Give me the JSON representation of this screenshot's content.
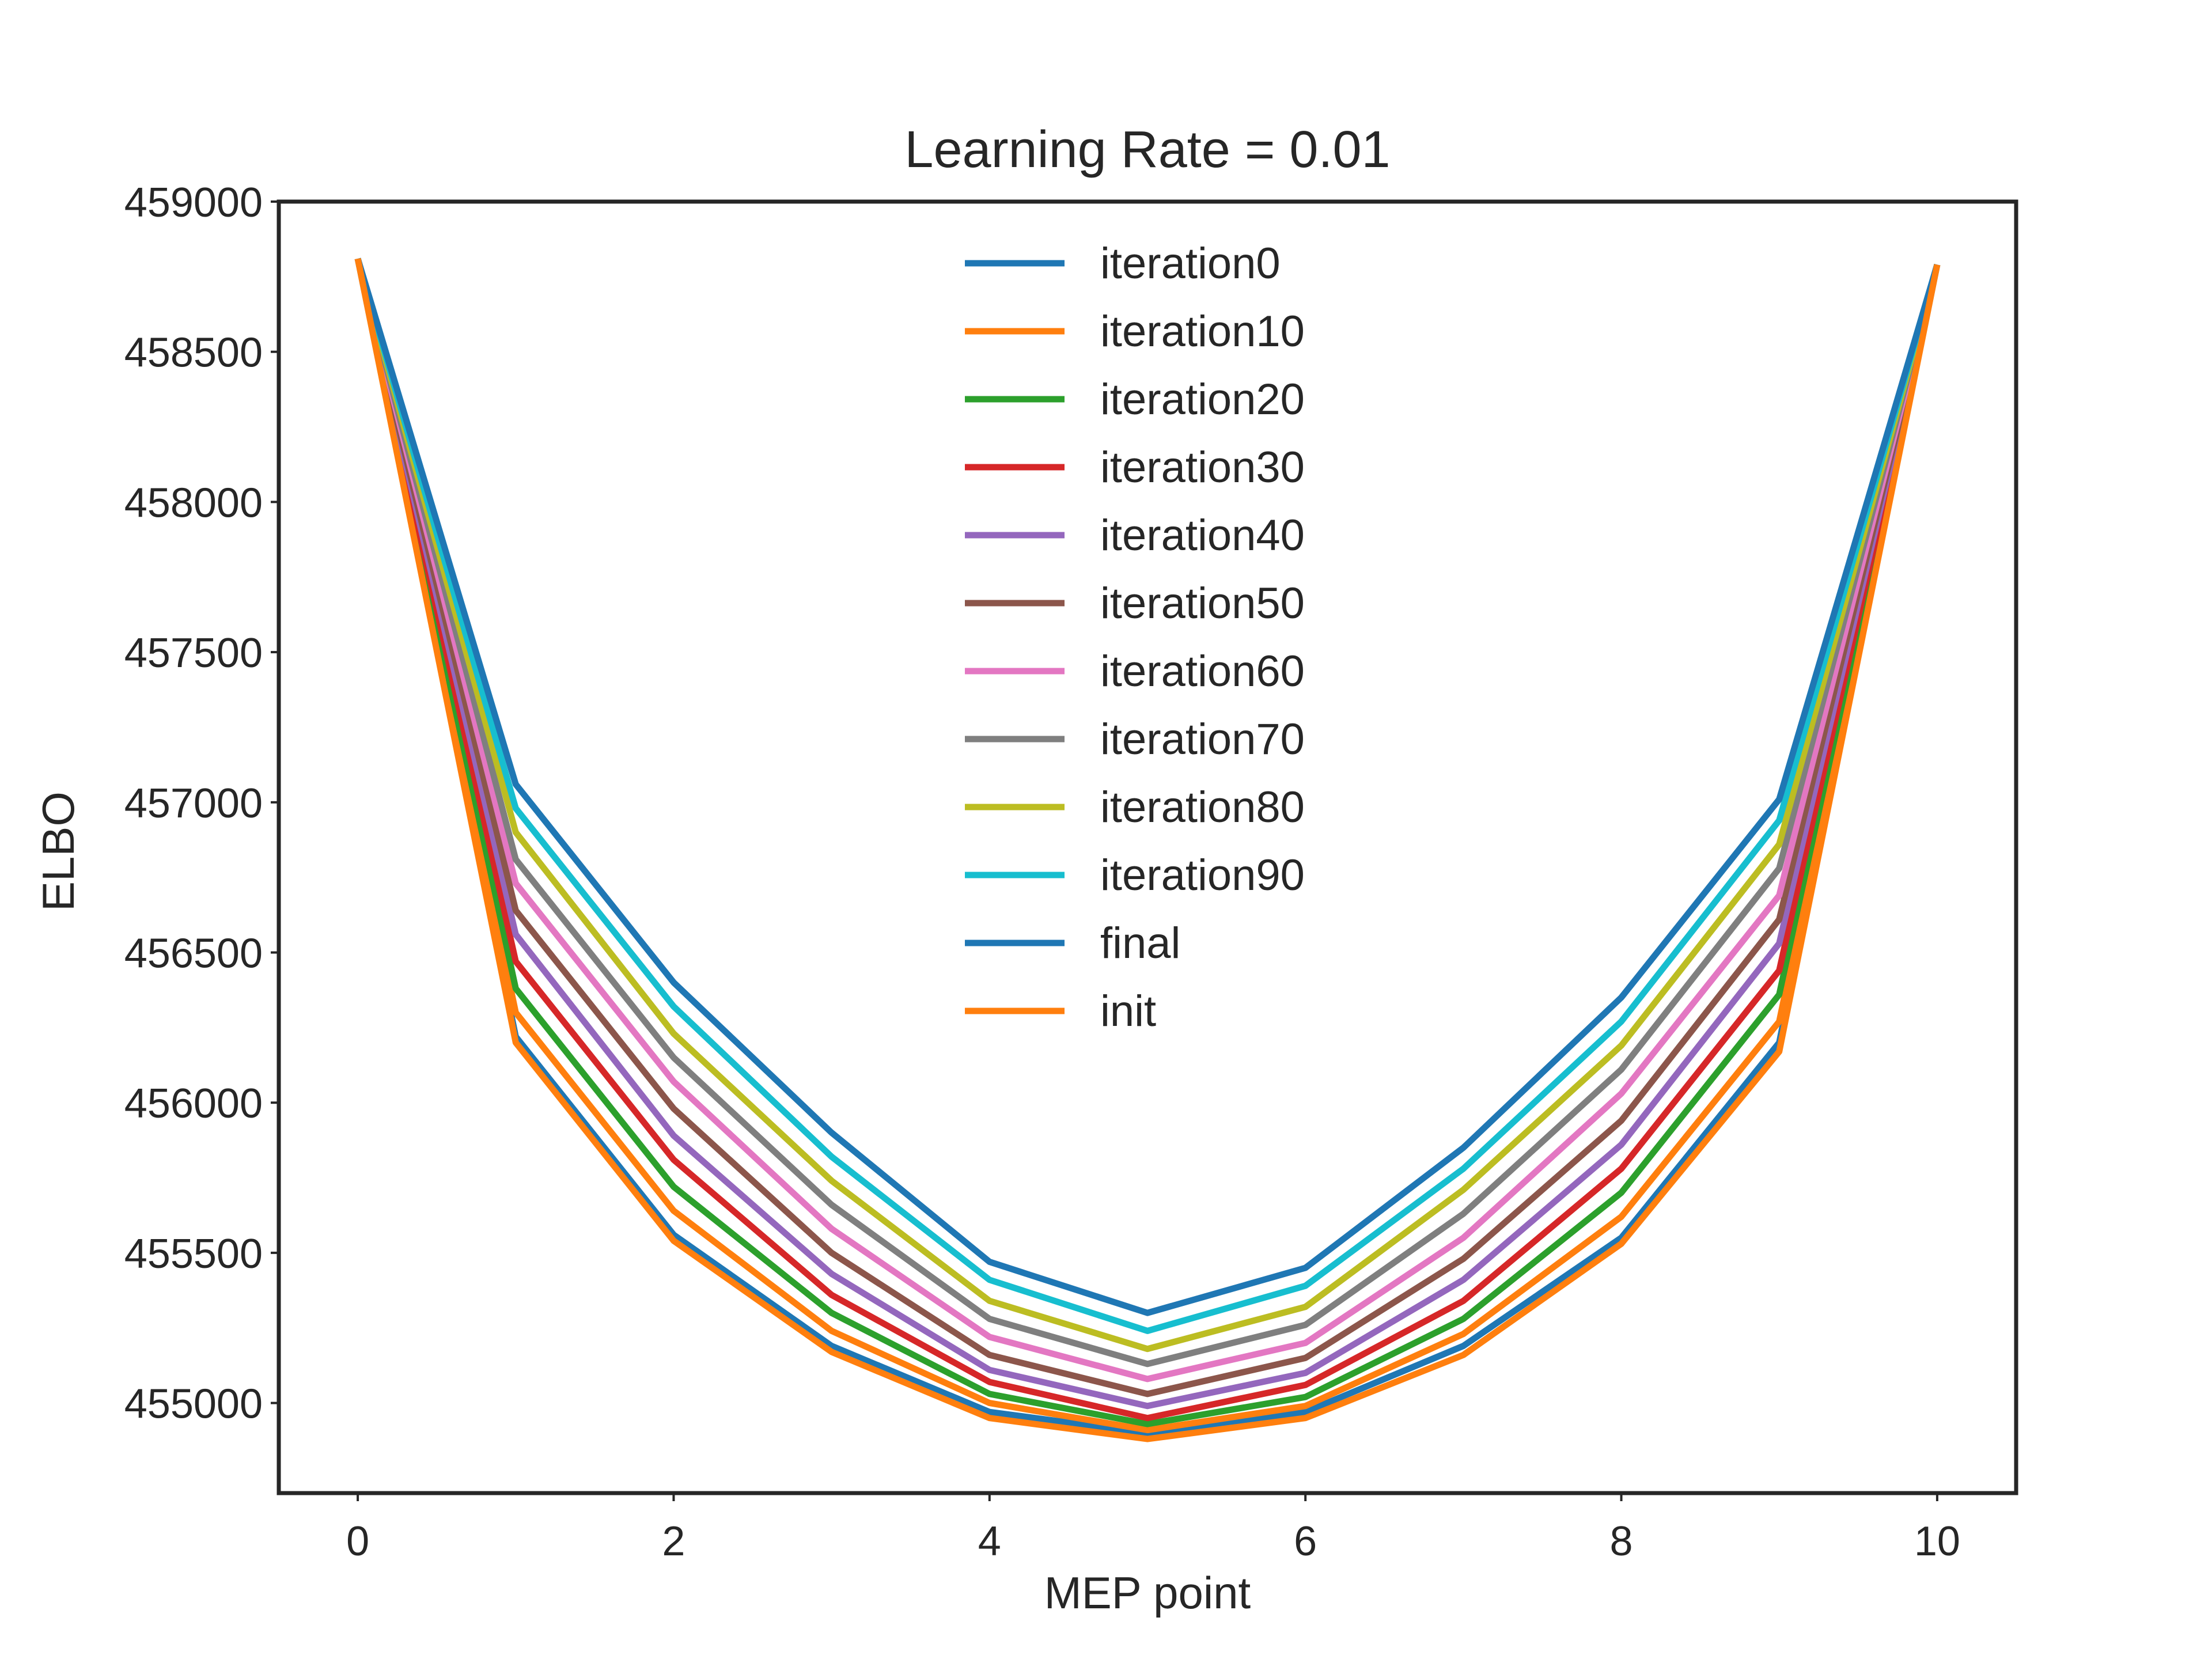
{
  "chart_data": {
    "type": "line",
    "title": "Learning Rate = 0.01",
    "xlabel": "MEP point",
    "ylabel": "ELBO",
    "xlim": [
      -0.5,
      10.5
    ],
    "ylim": [
      454700,
      459000
    ],
    "xticks": [
      0,
      2,
      4,
      6,
      8,
      10
    ],
    "yticks": [
      455000,
      455500,
      456000,
      456500,
      457000,
      457500,
      458000,
      458500,
      459000
    ],
    "grid": false,
    "legend": "upper-center",
    "x": [
      0,
      1,
      2,
      3,
      4,
      5,
      6,
      7,
      8,
      9,
      10
    ],
    "series": [
      {
        "name": "iteration0",
        "color": "#1f77b4",
        "values": [
          458810,
          456220,
          455560,
          455190,
          454970,
          454900,
          454970,
          455190,
          455550,
          456200,
          458790
        ]
      },
      {
        "name": "iteration10",
        "color": "#ff7f0e",
        "values": [
          458810,
          456300,
          455640,
          455240,
          455000,
          454910,
          454990,
          455230,
          455620,
          456270,
          458790
        ]
      },
      {
        "name": "iteration20",
        "color": "#2ca02c",
        "values": [
          458810,
          456380,
          455720,
          455300,
          455030,
          454930,
          455020,
          455280,
          455700,
          456360,
          458790
        ]
      },
      {
        "name": "iteration30",
        "color": "#d62728",
        "values": [
          458810,
          456470,
          455810,
          455360,
          455070,
          454950,
          455060,
          455340,
          455780,
          456440,
          458790
        ]
      },
      {
        "name": "iteration40",
        "color": "#9467bd",
        "values": [
          458810,
          456560,
          455890,
          455430,
          455110,
          454990,
          455100,
          455410,
          455860,
          456530,
          458790
        ]
      },
      {
        "name": "iteration50",
        "color": "#8c564b",
        "values": [
          458810,
          456640,
          455980,
          455500,
          455160,
          455030,
          455150,
          455480,
          455940,
          456610,
          458790
        ]
      },
      {
        "name": "iteration60",
        "color": "#e377c2",
        "values": [
          458810,
          456730,
          456070,
          455580,
          455220,
          455080,
          455200,
          455550,
          456030,
          456690,
          458790
        ]
      },
      {
        "name": "iteration70",
        "color": "#7f7f7f",
        "values": [
          458810,
          456810,
          456150,
          455660,
          455280,
          455130,
          455260,
          455630,
          456110,
          456780,
          458790
        ]
      },
      {
        "name": "iteration80",
        "color": "#bcbd22",
        "values": [
          458810,
          456900,
          456230,
          455740,
          455340,
          455180,
          455320,
          455710,
          456190,
          456860,
          458790
        ]
      },
      {
        "name": "iteration90",
        "color": "#17becf",
        "values": [
          458810,
          456980,
          456320,
          455820,
          455410,
          455240,
          455390,
          455780,
          456270,
          456940,
          458790
        ]
      },
      {
        "name": "final",
        "color": "#1f77b4",
        "values": [
          458810,
          457060,
          456400,
          455900,
          455470,
          455300,
          455450,
          455850,
          456350,
          457010,
          458790
        ]
      },
      {
        "name": "init",
        "color": "#ff7f0e",
        "values": [
          458810,
          456200,
          455540,
          455170,
          454950,
          454880,
          454950,
          455160,
          455530,
          456170,
          458790
        ]
      }
    ]
  }
}
